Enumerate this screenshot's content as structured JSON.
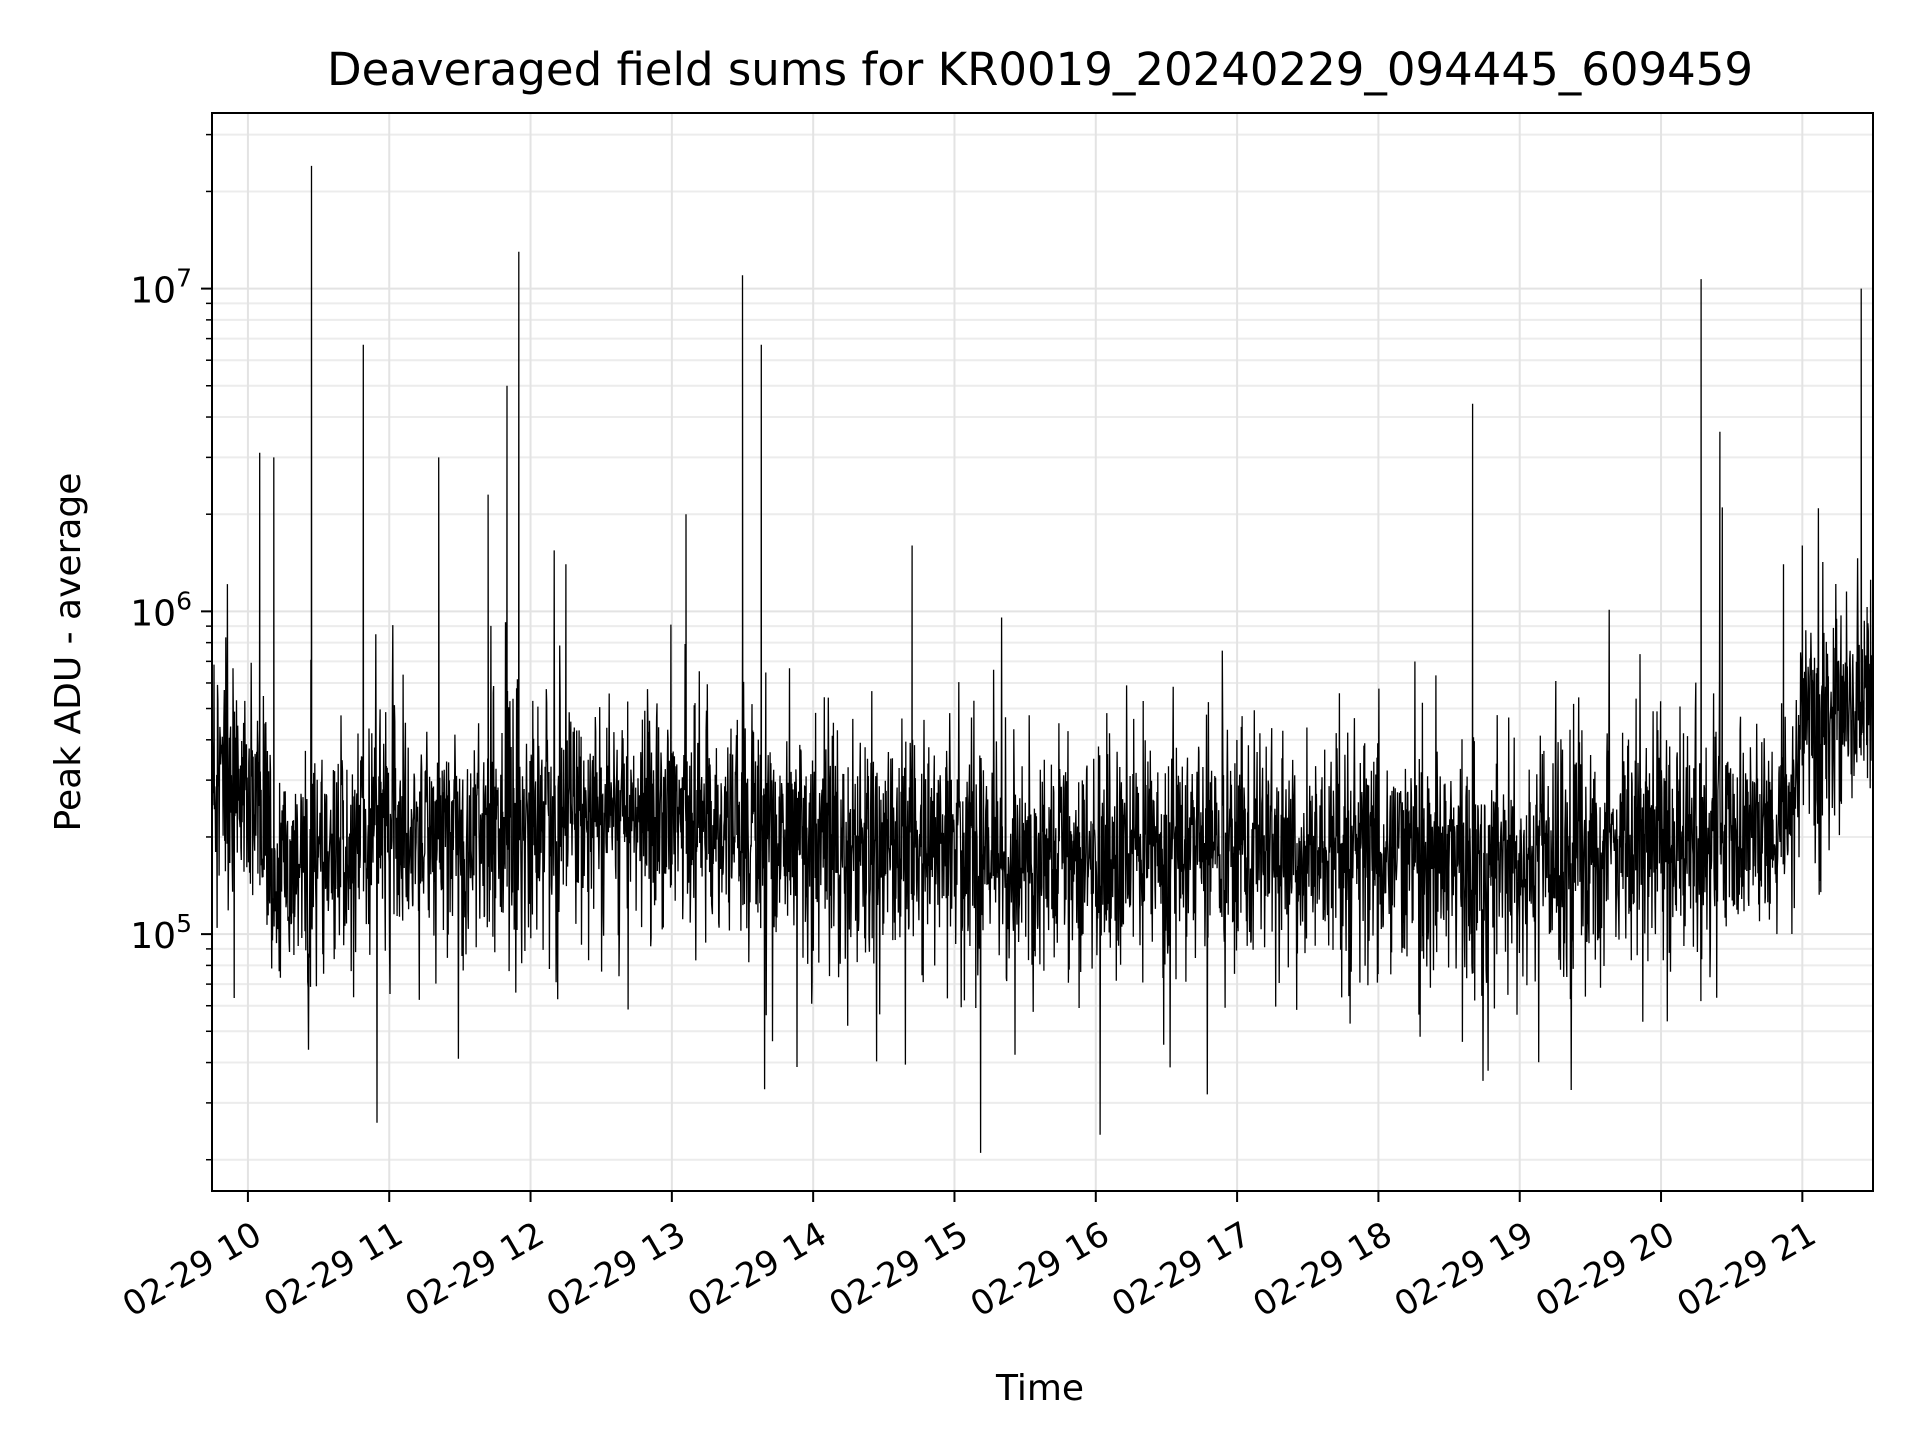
{
  "chart_data": {
    "type": "line",
    "title": "Deaveraged field sums for KR0019_20240229_094445_609459",
    "xlabel": "Time",
    "ylabel": "Peak ADU - average",
    "yscale": "log",
    "xlim": [
      "2024-02-29 09:44:45",
      "2024-02-29 21:30:00"
    ],
    "ylim": [
      16000,
      35000000
    ],
    "grid": "on (major and minor)",
    "line_color": "#000000",
    "x_ticks": [
      {
        "value": "2024-02-29 10:00",
        "label": "02-29 10"
      },
      {
        "value": "2024-02-29 11:00",
        "label": "02-29 11"
      },
      {
        "value": "2024-02-29 12:00",
        "label": "02-29 12"
      },
      {
        "value": "2024-02-29 13:00",
        "label": "02-29 13"
      },
      {
        "value": "2024-02-29 14:00",
        "label": "02-29 14"
      },
      {
        "value": "2024-02-29 15:00",
        "label": "02-29 15"
      },
      {
        "value": "2024-02-29 16:00",
        "label": "02-29 16"
      },
      {
        "value": "2024-02-29 17:00",
        "label": "02-29 17"
      },
      {
        "value": "2024-02-29 18:00",
        "label": "02-29 18"
      },
      {
        "value": "2024-02-29 19:00",
        "label": "02-29 19"
      },
      {
        "value": "2024-02-29 20:00",
        "label": "02-29 20"
      },
      {
        "value": "2024-02-29 21:00",
        "label": "02-29 21"
      }
    ],
    "y_ticks": [
      {
        "value": 100000,
        "base": "10",
        "exp": "5"
      },
      {
        "value": 1000000,
        "base": "10",
        "exp": "6"
      },
      {
        "value": 10000000,
        "base": "10",
        "exp": "7"
      }
    ],
    "baseline": [
      {
        "t": "2024-02-29 09:45",
        "v": 300000
      },
      {
        "t": "2024-02-29 10:00",
        "v": 330000
      },
      {
        "t": "2024-02-29 10:10",
        "v": 150000
      },
      {
        "t": "2024-02-29 10:30",
        "v": 170000
      },
      {
        "t": "2024-02-29 11:00",
        "v": 220000
      },
      {
        "t": "2024-02-29 11:30",
        "v": 200000
      },
      {
        "t": "2024-02-29 12:00",
        "v": 230000
      },
      {
        "t": "2024-02-29 13:00",
        "v": 250000
      },
      {
        "t": "2024-02-29 14:00",
        "v": 200000
      },
      {
        "t": "2024-02-29 15:00",
        "v": 180000
      },
      {
        "t": "2024-02-29 16:00",
        "v": 180000
      },
      {
        "t": "2024-02-29 17:00",
        "v": 190000
      },
      {
        "t": "2024-02-29 18:00",
        "v": 180000
      },
      {
        "t": "2024-02-29 19:00",
        "v": 170000
      },
      {
        "t": "2024-02-29 20:00",
        "v": 200000
      },
      {
        "t": "2024-02-29 20:55",
        "v": 220000
      },
      {
        "t": "2024-02-29 21:00",
        "v": 450000
      },
      {
        "t": "2024-02-29 21:30",
        "v": 550000
      }
    ],
    "spikes": [
      {
        "t": "2024-02-29 10:05",
        "v": 3100000
      },
      {
        "t": "2024-02-29 10:11",
        "v": 3000000
      },
      {
        "t": "2024-02-29 10:27",
        "v": 24000000
      },
      {
        "t": "2024-02-29 10:49",
        "v": 6700000
      },
      {
        "t": "2024-02-29 11:21",
        "v": 3000000
      },
      {
        "t": "2024-02-29 11:42",
        "v": 2300000
      },
      {
        "t": "2024-02-29 11:50",
        "v": 5000000
      },
      {
        "t": "2024-02-29 11:55",
        "v": 13000000
      },
      {
        "t": "2024-02-29 12:15",
        "v": 1400000
      },
      {
        "t": "2024-02-29 13:06",
        "v": 2000000
      },
      {
        "t": "2024-02-29 13:30",
        "v": 11000000
      },
      {
        "t": "2024-02-29 13:38",
        "v": 6700000
      },
      {
        "t": "2024-02-29 14:42",
        "v": 1600000
      },
      {
        "t": "2024-02-29 18:40",
        "v": 4400000
      },
      {
        "t": "2024-02-29 20:17",
        "v": 10700000
      },
      {
        "t": "2024-02-29 20:25",
        "v": 3600000
      },
      {
        "t": "2024-02-29 20:26",
        "v": 2100000
      },
      {
        "t": "2024-02-29 20:52",
        "v": 1400000
      },
      {
        "t": "2024-02-29 21:00",
        "v": 1600000
      },
      {
        "t": "2024-02-29 21:25",
        "v": 10000000
      }
    ]
  }
}
